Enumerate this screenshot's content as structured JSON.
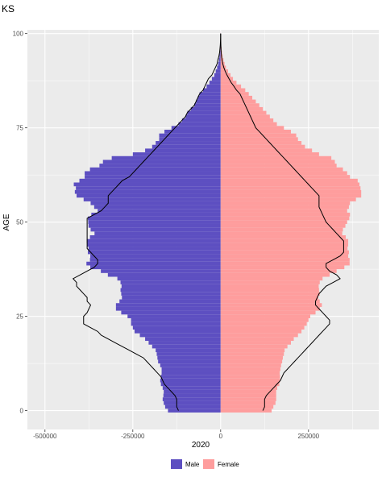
{
  "chart_data": {
    "type": "bar",
    "orientation": "horizontal",
    "layout": "population-pyramid",
    "title": "KS",
    "xlabel": "2020",
    "ylabel": "AGE",
    "xlim": [
      -550000,
      450000
    ],
    "ylim": [
      -5,
      101
    ],
    "x_ticks": [
      -500000,
      -250000,
      0,
      250000
    ],
    "x_tick_labels": [
      "-500000",
      "-250000",
      "0",
      "250000"
    ],
    "y_ticks": [
      0,
      25,
      50,
      75,
      100
    ],
    "y_tick_labels": [
      "0",
      "25",
      "50",
      "75",
      "100"
    ],
    "grid": true,
    "legend_position": "bottom",
    "colors": {
      "Male": "#5d4fc1",
      "Female": "#fe9d9d",
      "panel": "#ebebeb",
      "grid": "#ffffff",
      "outline": "#000000"
    },
    "series": [
      {
        "name": "Male",
        "values": [
          -150000,
          -158000,
          -162000,
          -165000,
          -163000,
          -162000,
          -165000,
          -170000,
          -172000,
          -170000,
          -168000,
          -168000,
          -172000,
          -178000,
          -180000,
          -182000,
          -185000,
          -195000,
          -205000,
          -215000,
          -230000,
          -245000,
          -250000,
          -255000,
          -255000,
          -265000,
          -283000,
          -298000,
          -298000,
          -288000,
          -281000,
          -283000,
          -285000,
          -282000,
          -285000,
          -294000,
          -321000,
          -341000,
          -371000,
          -382000,
          -372000,
          -371000,
          -378000,
          -376000,
          -380000,
          -381000,
          -372000,
          -359000,
          -370000,
          -376000,
          -377000,
          -378000,
          -368000,
          -350000,
          -360000,
          -370000,
          -390000,
          -410000,
          -415000,
          -412000,
          -418000,
          -402000,
          -387000,
          -387000,
          -372000,
          -345000,
          -335000,
          -310000,
          -250000,
          -215000,
          -195000,
          -185000,
          -175000,
          -175000,
          -160000,
          -140000,
          -120000,
          -110000,
          -100000,
          -95000,
          -85000,
          -75000,
          -70000,
          -65000,
          -60000,
          -50000,
          -40000,
          -32000,
          -25000,
          -18000,
          -14000,
          -10000,
          -7000,
          -5000,
          -3500,
          -2500,
          -1500,
          -1000,
          -600,
          -300,
          -150
        ]
      },
      {
        "name": "Female",
        "values": [
          145000,
          150000,
          156000,
          158000,
          158000,
          158000,
          161000,
          167000,
          169000,
          169000,
          168000,
          170000,
          172000,
          175000,
          177000,
          180000,
          182000,
          190000,
          200000,
          208000,
          220000,
          230000,
          238000,
          245000,
          250000,
          255000,
          270000,
          282000,
          288000,
          282000,
          278000,
          282000,
          280000,
          279000,
          282000,
          290000,
          310000,
          330000,
          352000,
          367000,
          367000,
          363000,
          365000,
          361000,
          363000,
          363000,
          356000,
          346000,
          348000,
          355000,
          360000,
          366000,
          368000,
          360000,
          365000,
          368000,
          385000,
          400000,
          400000,
          398000,
          395000,
          390000,
          368000,
          360000,
          348000,
          330000,
          325000,
          315000,
          280000,
          260000,
          240000,
          230000,
          220000,
          215000,
          200000,
          180000,
          160000,
          150000,
          140000,
          130000,
          120000,
          110000,
          100000,
          90000,
          80000,
          70000,
          58000,
          45000,
          35000,
          28000,
          21000,
          15000,
          11000,
          8000,
          5500,
          3800,
          2500,
          1600,
          1000,
          500,
          250
        ]
      },
      {
        "name": "Male outline",
        "values": [
          -120000,
          -125000,
          -125000,
          -125000,
          -130000,
          -140000,
          -150000,
          -160000,
          -165000,
          -170000,
          -180000,
          -190000,
          -200000,
          -210000,
          -220000,
          -240000,
          -260000,
          -280000,
          -300000,
          -320000,
          -340000,
          -350000,
          -370000,
          -390000,
          -390000,
          -390000,
          -380000,
          -375000,
          -370000,
          -380000,
          -380000,
          -390000,
          -400000,
          -410000,
          -410000,
          -420000,
          -400000,
          -380000,
          -360000,
          -350000,
          -350000,
          -360000,
          -370000,
          -380000,
          -380000,
          -380000,
          -380000,
          -380000,
          -380000,
          -380000,
          -380000,
          -380000,
          -360000,
          -340000,
          -330000,
          -320000,
          -320000,
          -320000,
          -310000,
          -300000,
          -290000,
          -280000,
          -260000,
          -250000,
          -240000,
          -230000,
          -220000,
          -210000,
          -200000,
          -190000,
          -180000,
          -170000,
          -160000,
          -150000,
          -140000,
          -130000,
          -120000,
          -110000,
          -100000,
          -95000,
          -85000,
          -75000,
          -70000,
          -65000,
          -60000,
          -50000,
          -45000,
          -40000,
          -35000,
          -25000,
          -20000,
          -15000,
          -10000,
          -8000,
          -5000,
          -3000,
          -2000,
          -1000,
          -500,
          -200,
          -100
        ]
      },
      {
        "name": "Female outline",
        "values": [
          120000,
          125000,
          125000,
          125000,
          130000,
          140000,
          150000,
          160000,
          170000,
          175000,
          180000,
          190000,
          200000,
          210000,
          220000,
          230000,
          240000,
          250000,
          260000,
          270000,
          280000,
          290000,
          300000,
          310000,
          310000,
          300000,
          290000,
          280000,
          270000,
          270000,
          275000,
          280000,
          290000,
          300000,
          320000,
          340000,
          330000,
          310000,
          300000,
          300000,
          320000,
          340000,
          350000,
          350000,
          350000,
          350000,
          340000,
          330000,
          320000,
          310000,
          300000,
          295000,
          290000,
          285000,
          280000,
          280000,
          280000,
          280000,
          270000,
          260000,
          250000,
          240000,
          230000,
          220000,
          210000,
          200000,
          190000,
          180000,
          170000,
          160000,
          150000,
          140000,
          130000,
          120000,
          110000,
          100000,
          95000,
          90000,
          85000,
          80000,
          75000,
          70000,
          65000,
          60000,
          55000,
          45000,
          38000,
          30000,
          24000,
          18000,
          13000,
          9000,
          6000,
          4000,
          2500,
          1500,
          1000,
          600,
          300,
          150,
          80
        ]
      }
    ],
    "ages_from": 0,
    "ages_to": 100
  },
  "legend": {
    "items": [
      {
        "label": "Male",
        "color": "#5d4fc1"
      },
      {
        "label": "Female",
        "color": "#fe9d9d"
      }
    ]
  }
}
